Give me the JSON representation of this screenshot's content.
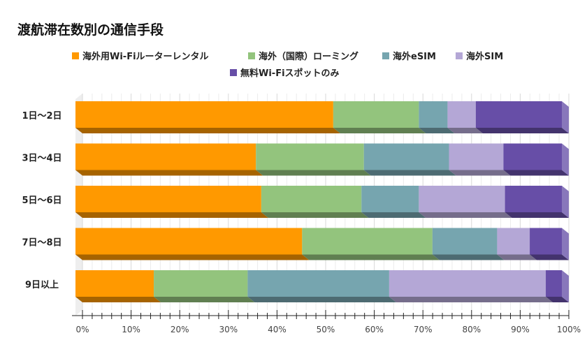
{
  "chart_data": {
    "type": "bar",
    "orientation": "horizontal",
    "stacked": "100%",
    "style": "3d",
    "title": "渡航滞在数別の通信手段",
    "categories": [
      "1日～2日",
      "3日～4日",
      "5日～6日",
      "7日～8日",
      "9日以上"
    ],
    "series": [
      {
        "name": "海外用Wi-Fiルーターレンタル",
        "color": "#FF9900",
        "values": [
          53.0,
          37.1,
          38.2,
          46.6,
          16.1
        ]
      },
      {
        "name": "海外（国際）ローミング",
        "color": "#93C47D",
        "values": [
          17.6,
          22.2,
          20.6,
          26.8,
          19.3
        ]
      },
      {
        "name": "海外eSIM",
        "color": "#76A5AF",
        "values": [
          5.9,
          17.5,
          11.8,
          13.3,
          29.1
        ]
      },
      {
        "name": "海外SIM",
        "color": "#B4A7D6",
        "values": [
          5.8,
          11.2,
          17.7,
          6.7,
          32.2
        ]
      },
      {
        "name": "無料Wi-Fiスポットのみ",
        "color": "#674EA7",
        "values": [
          17.7,
          12.0,
          11.7,
          6.6,
          3.3
        ]
      }
    ],
    "xticks": [
      "0%",
      "10%",
      "20%",
      "30%",
      "40%",
      "50%",
      "60%",
      "70%",
      "80%",
      "90%",
      "100%"
    ],
    "xlim": [
      0,
      100
    ],
    "grid": true,
    "legend": "top"
  }
}
